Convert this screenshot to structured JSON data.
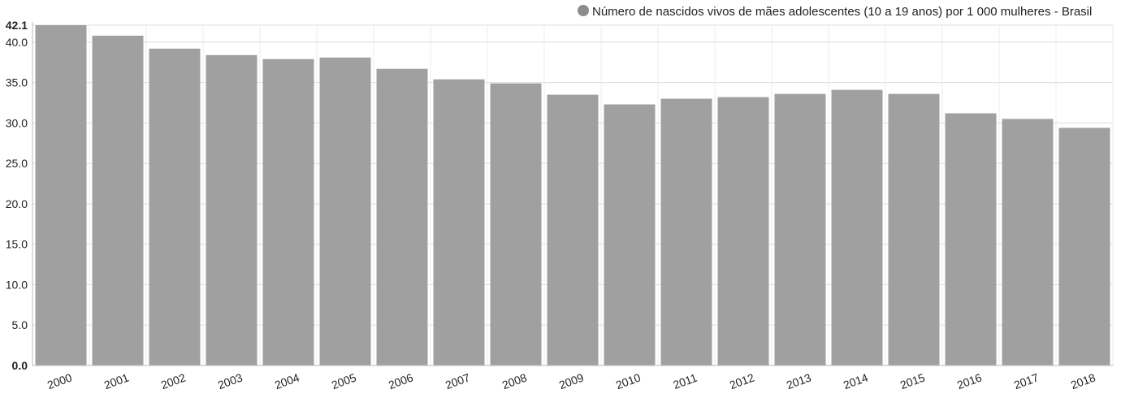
{
  "chart_data": {
    "type": "bar",
    "categories": [
      "2000",
      "2001",
      "2002",
      "2003",
      "2004",
      "2005",
      "2006",
      "2007",
      "2008",
      "2009",
      "2010",
      "2011",
      "2012",
      "2013",
      "2014",
      "2015",
      "2016",
      "2017",
      "2018"
    ],
    "series": [
      {
        "name": "Número de nascidos vivos de mães adolescentes (10 a 19 anos) por 1 000 mulheres - Brasil",
        "values": [
          42.1,
          40.8,
          39.2,
          38.4,
          37.9,
          38.1,
          36.7,
          35.4,
          34.9,
          33.5,
          32.3,
          33.0,
          33.2,
          33.6,
          34.1,
          33.6,
          31.2,
          30.5,
          29.4
        ]
      }
    ],
    "ylim": [
      0,
      42.1
    ],
    "yticks": [
      "0.0",
      "5.0",
      "10.0",
      "15.0",
      "20.0",
      "25.0",
      "30.0",
      "35.0",
      "40.0",
      "42.1"
    ],
    "grid": true,
    "legend_position": "top-right",
    "colors": {
      "bar": "#a0a0a0",
      "legend_marker": "#8c8c8c",
      "grid": "#dddddd",
      "axis": "#bbbbbb"
    }
  }
}
